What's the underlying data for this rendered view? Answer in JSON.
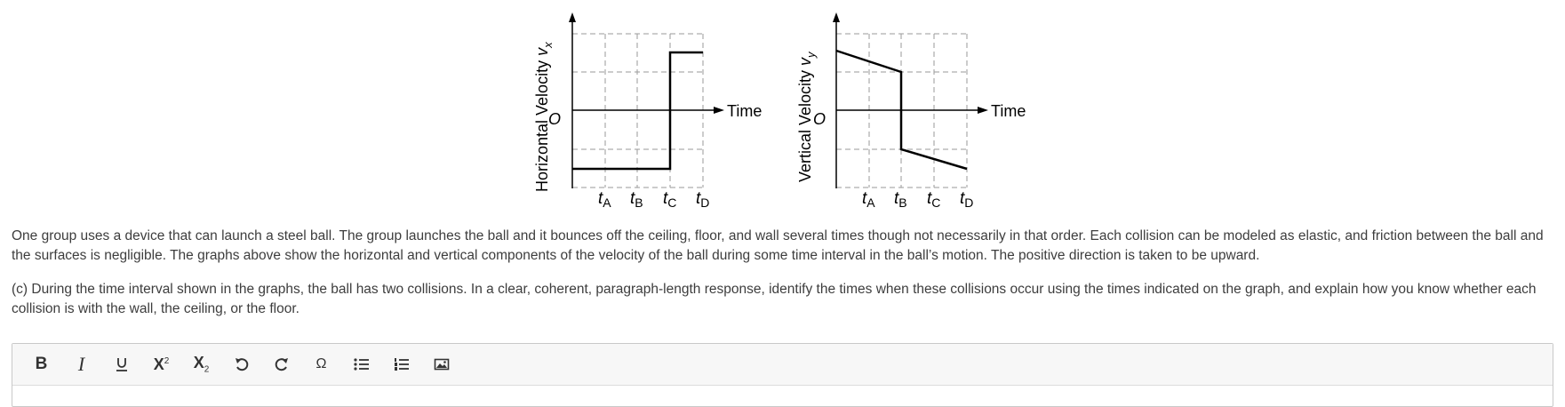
{
  "graphs": {
    "horizontal": {
      "ylabel_main": "Horizontal Velocity ",
      "ylabel_var": "v",
      "ylabel_sub": "x",
      "origin": "O",
      "xlabel": "Time"
    },
    "vertical": {
      "ylabel_main": "Vertical Velocity ",
      "ylabel_var": "v",
      "ylabel_sub": "y",
      "origin": "O",
      "xlabel": "Time"
    },
    "ticks": [
      {
        "var": "t",
        "sub": "A"
      },
      {
        "var": "t",
        "sub": "B"
      },
      {
        "var": "t",
        "sub": "C"
      },
      {
        "var": "t",
        "sub": "D"
      }
    ]
  },
  "paragraphs": {
    "p1": "One group uses a device that can launch a steel ball. The group launches the ball and it bounces off the ceiling, floor, and wall several times though not necessarily in that order. Each collision can be modeled as elastic, and friction between the ball and the surfaces is negligible. The graphs above show the horizontal and vertical components of the velocity of the ball during some time interval in the ball’s motion. The positive direction is taken to be upward.",
    "p2": "(c) During the time interval shown in the graphs, the ball has two collisions. In a clear, coherent, paragraph-length response, identify the times when these collisions occur using the times indicated on the graph, and explain how you know whether each collision is with the wall, the ceiling, or the floor."
  },
  "toolbar": {
    "bold": "B",
    "italic": "I",
    "omega": "Ω",
    "sup_base": "X",
    "sup_exp": "2",
    "sub_base": "X",
    "sub_exp": "2"
  }
}
